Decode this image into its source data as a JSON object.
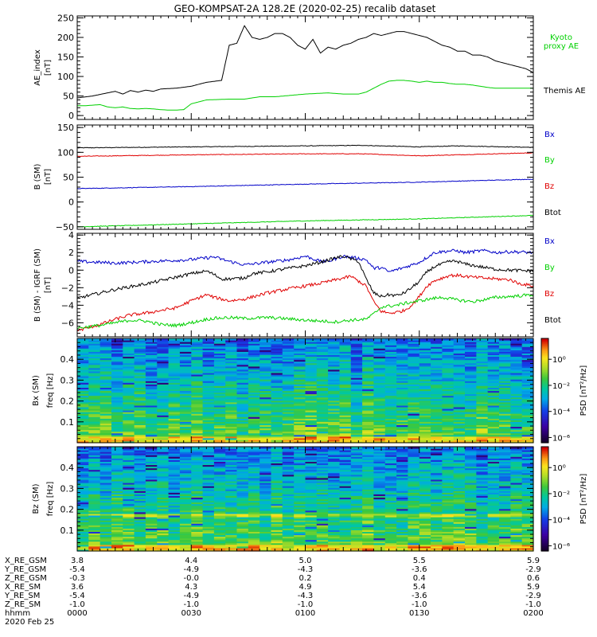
{
  "title": "GEO-KOMPSAT-2A 128.2E (2020-02-25) recalib dataset",
  "colors": {
    "black": "#000000",
    "blue": "#0000c8",
    "green": "#00d000",
    "red": "#e00000",
    "kyoto": "#00d000"
  },
  "chart_data": [
    {
      "id": "ae",
      "type": "line",
      "ylabel": "AE_index [nT]",
      "ylim": [
        -10,
        255
      ],
      "yticks": [
        0,
        50,
        100,
        150,
        200,
        250
      ],
      "xlim": [
        0,
        120
      ],
      "legend": [
        "Kyoto proxy AE",
        "Themis AE"
      ],
      "series": [
        {
          "name": "Themis AE",
          "color": "black",
          "x": [
            0,
            4,
            8,
            10,
            12,
            14,
            16,
            18,
            20,
            22,
            26,
            30,
            34,
            38,
            40,
            42,
            44,
            46,
            48,
            50,
            52,
            54,
            56,
            58,
            60,
            62,
            64,
            66,
            68,
            70,
            72,
            74,
            76,
            78,
            80,
            82,
            84,
            86,
            88,
            90,
            92,
            94,
            96,
            98,
            100,
            102,
            104,
            106,
            108,
            110,
            112,
            114,
            116,
            118,
            120
          ],
          "y": [
            45,
            50,
            58,
            62,
            55,
            64,
            60,
            65,
            62,
            68,
            70,
            75,
            85,
            90,
            180,
            185,
            230,
            200,
            195,
            200,
            210,
            210,
            200,
            180,
            170,
            195,
            160,
            175,
            170,
            180,
            185,
            195,
            200,
            210,
            205,
            210,
            215,
            215,
            210,
            205,
            200,
            190,
            180,
            175,
            165,
            165,
            155,
            155,
            150,
            140,
            135,
            130,
            125,
            120,
            110
          ]
        },
        {
          "name": "Kyoto proxy AE",
          "color": "green",
          "x": [
            2,
            6,
            8,
            10,
            12,
            14,
            16,
            18,
            20,
            22,
            24,
            26,
            28,
            30,
            34,
            40,
            44,
            48,
            52,
            60,
            66,
            70,
            74,
            76,
            78,
            80,
            82,
            84,
            86,
            88,
            90,
            92,
            94,
            96,
            98,
            100,
            102,
            104,
            106,
            108,
            110,
            112,
            114,
            116,
            118,
            120
          ],
          "y": [
            25,
            28,
            22,
            20,
            22,
            18,
            17,
            18,
            17,
            15,
            14,
            14,
            15,
            30,
            40,
            42,
            42,
            48,
            48,
            55,
            58,
            55,
            55,
            60,
            70,
            80,
            88,
            90,
            90,
            88,
            85,
            88,
            85,
            85,
            82,
            80,
            80,
            78,
            75,
            72,
            70,
            70,
            70,
            70,
            70,
            70
          ]
        }
      ]
    },
    {
      "id": "bsm",
      "type": "line",
      "ylabel": "B (SM) [nT]",
      "ylim": [
        -55,
        155
      ],
      "yticks": [
        -50,
        0,
        50,
        100,
        150
      ],
      "xlim": [
        0,
        120
      ],
      "legend": [
        "Bx",
        "By",
        "Bz",
        "Btot"
      ],
      "series": [
        {
          "name": "Btot",
          "color": "black",
          "x": [
            0,
            30,
            60,
            75,
            90,
            100,
            120
          ],
          "y": [
            109,
            111,
            113,
            114,
            111,
            113,
            110
          ]
        },
        {
          "name": "Bz",
          "color": "red",
          "x": [
            0,
            30,
            60,
            75,
            90,
            100,
            120
          ],
          "y": [
            92,
            95,
            97,
            97,
            93,
            95,
            99
          ]
        },
        {
          "name": "Bx",
          "color": "blue",
          "x": [
            0,
            30,
            60,
            90,
            120
          ],
          "y": [
            27,
            31,
            36,
            40,
            46
          ]
        },
        {
          "name": "By",
          "color": "green",
          "x": [
            0,
            30,
            60,
            90,
            120
          ],
          "y": [
            -50,
            -44,
            -38,
            -34,
            -27
          ]
        }
      ]
    },
    {
      "id": "bdiff",
      "type": "line",
      "ylabel": "B (SM) - IGRF (SM) [nT]",
      "ylim": [
        -7.6,
        4.2
      ],
      "yticks": [
        -6,
        -4,
        -2,
        0,
        2,
        4
      ],
      "xlim": [
        0,
        120
      ],
      "legend": [
        "Bx",
        "By",
        "Bz",
        "Btot"
      ],
      "series": [
        {
          "name": "Bx",
          "color": "blue",
          "x": [
            0,
            10,
            20,
            30,
            36,
            40,
            44,
            50,
            56,
            60,
            64,
            66,
            70,
            76,
            78,
            80,
            82,
            86,
            90,
            94,
            98,
            100,
            102,
            104,
            106,
            108,
            110,
            114,
            120
          ],
          "y": [
            1.0,
            0.8,
            1.0,
            1.2,
            1.5,
            1.0,
            0.6,
            0.9,
            1.2,
            1.6,
            1.0,
            1.0,
            1.6,
            1.2,
            0.2,
            0.3,
            -0.2,
            0.3,
            0.9,
            2.0,
            2.2,
            2.2,
            2.0,
            2.1,
            2.2,
            2.2,
            2.0,
            2.1,
            2.0
          ]
        },
        {
          "name": "Btot",
          "color": "black",
          "x": [
            0,
            5,
            10,
            15,
            20,
            25,
            30,
            34,
            36,
            38,
            40,
            44,
            46,
            50,
            54,
            60,
            64,
            68,
            70,
            74,
            76,
            78,
            80,
            82,
            84,
            86,
            88,
            90,
            92,
            94,
            98,
            100,
            102,
            106,
            110,
            114,
            120
          ],
          "y": [
            -3.2,
            -2.7,
            -2.2,
            -1.8,
            -1.4,
            -0.9,
            -0.4,
            -0.1,
            -0.5,
            -1.0,
            -1.0,
            -0.9,
            -0.4,
            -0.2,
            0.1,
            0.5,
            0.9,
            1.4,
            1.6,
            1.0,
            -1.0,
            -2.6,
            -3.0,
            -2.8,
            -2.9,
            -2.6,
            -2.0,
            -1.3,
            -0.2,
            0.4,
            1.0,
            1.0,
            0.7,
            0.4,
            0.1,
            0.0,
            -0.1
          ]
        },
        {
          "name": "Bz",
          "color": "red",
          "x": [
            0,
            6,
            10,
            14,
            18,
            22,
            26,
            30,
            34,
            36,
            38,
            40,
            44,
            50,
            56,
            60,
            64,
            68,
            72,
            76,
            78,
            80,
            82,
            84,
            86,
            88,
            90,
            92,
            94,
            96,
            98,
            100,
            104,
            110,
            114,
            116,
            120
          ],
          "y": [
            -6.9,
            -6.2,
            -5.6,
            -5.1,
            -4.9,
            -4.6,
            -4.3,
            -3.5,
            -2.8,
            -3.1,
            -3.3,
            -3.5,
            -3.3,
            -2.6,
            -2.1,
            -1.8,
            -1.5,
            -1.1,
            -0.7,
            -1.8,
            -3.6,
            -4.7,
            -4.9,
            -4.8,
            -4.6,
            -4.0,
            -3.0,
            -1.8,
            -1.2,
            -0.9,
            -0.6,
            -0.6,
            -0.8,
            -1.0,
            -1.1,
            -1.5,
            -1.8
          ]
        },
        {
          "name": "By",
          "color": "green",
          "x": [
            0,
            6,
            10,
            14,
            18,
            22,
            26,
            30,
            34,
            36,
            40,
            44,
            50,
            54,
            60,
            64,
            68,
            72,
            76,
            78,
            80,
            84,
            86,
            90,
            94,
            96,
            100,
            104,
            108,
            110,
            114,
            120
          ],
          "y": [
            -6.6,
            -6.3,
            -6.0,
            -5.7,
            -5.8,
            -6.2,
            -6.3,
            -6.0,
            -5.6,
            -5.5,
            -5.4,
            -5.5,
            -5.4,
            -5.5,
            -5.7,
            -5.8,
            -5.9,
            -5.7,
            -5.6,
            -5.0,
            -4.2,
            -4.0,
            -3.8,
            -3.5,
            -3.2,
            -3.1,
            -3.4,
            -3.6,
            -3.3,
            -3.1,
            -3.0,
            -2.8
          ]
        }
      ]
    },
    {
      "id": "bx_spec",
      "type": "heatmap",
      "ylabel": "Bx (SM)",
      "ylabel2": "freq [Hz]",
      "ylim": [
        0,
        0.5
      ],
      "yticks": [
        0.1,
        0.2,
        0.3,
        0.4
      ],
      "xlim": [
        0,
        120
      ],
      "colorbar_label": "PSD [nT²/Hz]",
      "colorbar_ticks": [
        "10⁰",
        "10⁻²",
        "10⁻⁴",
        "10⁻⁶"
      ]
    },
    {
      "id": "bz_spec",
      "type": "heatmap",
      "ylabel": "Bz (SM)",
      "ylabel2": "freq [Hz]",
      "ylim": [
        0,
        0.5
      ],
      "yticks": [
        0.1,
        0.2,
        0.3,
        0.4
      ],
      "xlim": [
        0,
        120
      ],
      "colorbar_label": "PSD [nT²/Hz]",
      "colorbar_ticks": [
        "10⁰",
        "10⁻²",
        "10⁻⁴",
        "10⁻⁶"
      ]
    }
  ],
  "ephemeris": {
    "labels": [
      "X_RE_GSM",
      "Y_RE_GSM",
      "Z_RE_GSM",
      "X_RE_SM",
      "Y_RE_SM",
      "Z_RE_SM",
      "hhmm",
      "2020 Feb 25"
    ],
    "columns": [
      {
        "t": 0,
        "values": [
          "3.8",
          "-5.4",
          "-0.3",
          "3.6",
          "-5.4",
          "-1.0",
          "0000"
        ]
      },
      {
        "t": 30,
        "values": [
          "4.4",
          "-4.9",
          "-0.0",
          "4.3",
          "-4.9",
          "-1.0",
          "0030"
        ]
      },
      {
        "t": 60,
        "values": [
          "5.0",
          "-4.3",
          "0.2",
          "4.9",
          "-4.3",
          "-1.0",
          "0100"
        ]
      },
      {
        "t": 90,
        "values": [
          "5.5",
          "-3.6",
          "0.4",
          "5.4",
          "-3.6",
          "-1.0",
          "0130"
        ]
      },
      {
        "t": 120,
        "values": [
          "5.9",
          "-2.9",
          "0.6",
          "5.9",
          "-2.9",
          "-1.0",
          "0200"
        ]
      }
    ]
  }
}
